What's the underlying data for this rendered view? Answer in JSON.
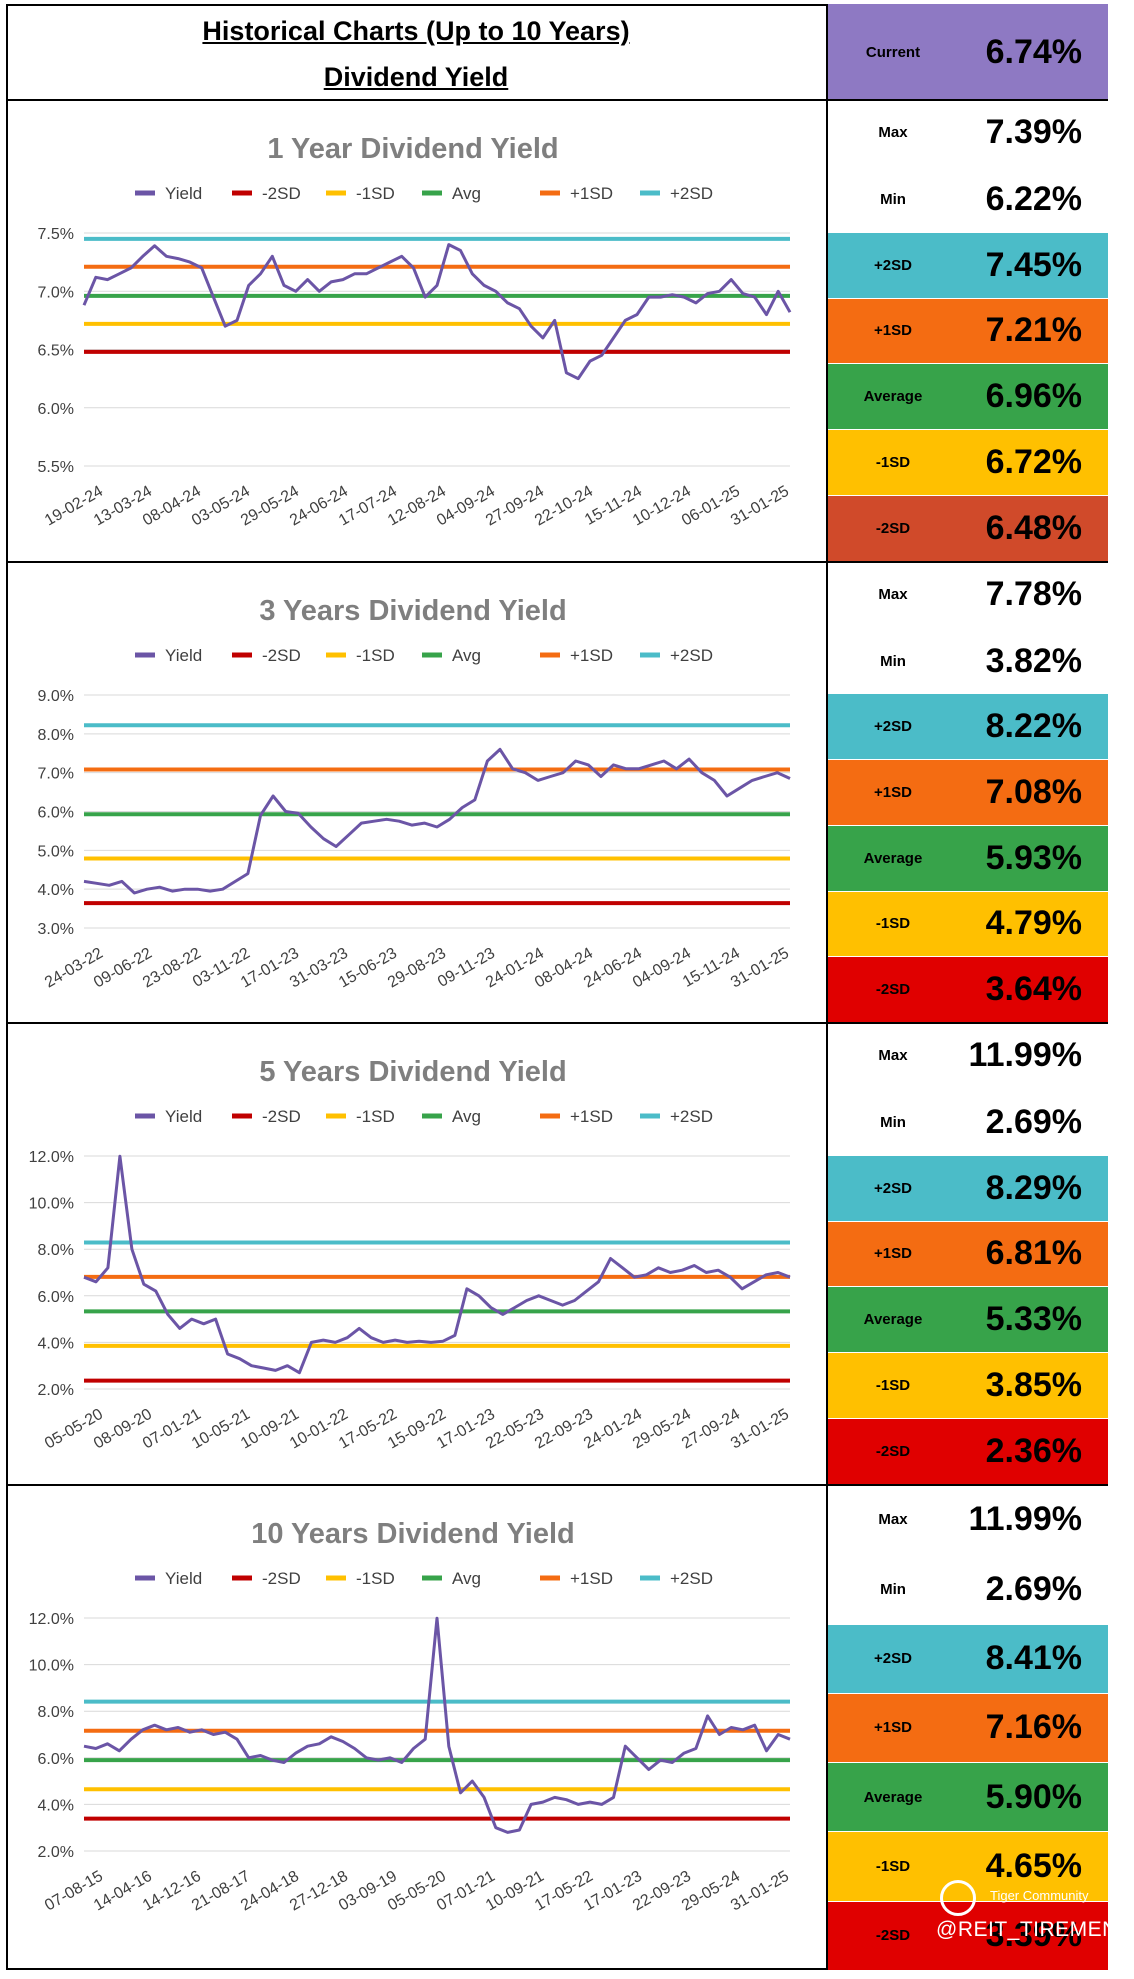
{
  "header": {
    "title_line1": "Historical Charts (Up to 10 Years)",
    "title_line2": "Dividend Yield"
  },
  "current": {
    "label": "Current",
    "value": "6.74%",
    "color": "#8E79C3"
  },
  "legend_labels": [
    "Yield",
    "-2SD",
    "-1SD",
    "Avg",
    "+1SD",
    "+2SD"
  ],
  "colors": {
    "yield": "#6B55A6",
    "minus2": "#C00000",
    "minus1": "#FFC000",
    "avg": "#37A34A",
    "plus1": "#F46C12",
    "plus2": "#4BBCC8",
    "grid": "#D9D9D9",
    "title": "#7F7F7F"
  },
  "panels": [
    {
      "stats": [
        {
          "label": "Max",
          "value": "7.39%",
          "bg": "#FFFFFF"
        },
        {
          "label": "Min",
          "value": "6.22%",
          "bg": "#FFFFFF"
        },
        {
          "label": "+2SD",
          "value": "7.45%",
          "bg": "#4BBCC8"
        },
        {
          "label": "+1SD",
          "value": "7.21%",
          "bg": "#F46C12"
        },
        {
          "label": "Average",
          "value": "6.96%",
          "bg": "#37A34A"
        },
        {
          "label": "-1SD",
          "value": "6.72%",
          "bg": "#FFC000"
        },
        {
          "label": "-2SD",
          "value": "6.48%",
          "bg": "#D04A2A"
        }
      ]
    },
    {
      "stats": [
        {
          "label": "Max",
          "value": "7.78%",
          "bg": "#FFFFFF"
        },
        {
          "label": "Min",
          "value": "3.82%",
          "bg": "#FFFFFF"
        },
        {
          "label": "+2SD",
          "value": "8.22%",
          "bg": "#4BBCC8"
        },
        {
          "label": "+1SD",
          "value": "7.08%",
          "bg": "#F46C12"
        },
        {
          "label": "Average",
          "value": "5.93%",
          "bg": "#37A34A"
        },
        {
          "label": "-1SD",
          "value": "4.79%",
          "bg": "#FFC000"
        },
        {
          "label": "-2SD",
          "value": "3.64%",
          "bg": "#E00000"
        }
      ]
    },
    {
      "stats": [
        {
          "label": "Max",
          "value": "11.99%",
          "bg": "#FFFFFF"
        },
        {
          "label": "Min",
          "value": "2.69%",
          "bg": "#FFFFFF"
        },
        {
          "label": "+2SD",
          "value": "8.29%",
          "bg": "#4BBCC8"
        },
        {
          "label": "+1SD",
          "value": "6.81%",
          "bg": "#F46C12"
        },
        {
          "label": "Average",
          "value": "5.33%",
          "bg": "#37A34A"
        },
        {
          "label": "-1SD",
          "value": "3.85%",
          "bg": "#FFC000"
        },
        {
          "label": "-2SD",
          "value": "2.36%",
          "bg": "#E00000"
        }
      ]
    },
    {
      "stats": [
        {
          "label": "Max",
          "value": "11.99%",
          "bg": "#FFFFFF"
        },
        {
          "label": "Min",
          "value": "2.69%",
          "bg": "#FFFFFF"
        },
        {
          "label": "+2SD",
          "value": "8.41%",
          "bg": "#4BBCC8"
        },
        {
          "label": "+1SD",
          "value": "7.16%",
          "bg": "#F46C12"
        },
        {
          "label": "Average",
          "value": "5.90%",
          "bg": "#37A34A"
        },
        {
          "label": "-1SD",
          "value": "4.65%",
          "bg": "#FFC000"
        },
        {
          "label": "-2SD",
          "value": "3.39%",
          "bg": "#E00000"
        }
      ]
    }
  ],
  "chart_data": [
    {
      "type": "line",
      "title": "1 Year Dividend Yield",
      "ylim": [
        5.5,
        7.5
      ],
      "yticks": [
        5.5,
        6.0,
        6.5,
        7.0,
        7.5
      ],
      "ytick_labels": [
        "5.5%",
        "6.0%",
        "6.5%",
        "7.0%",
        "7.5%"
      ],
      "x_tick_labels": [
        "19-02-24",
        "13-03-24",
        "08-04-24",
        "03-05-24",
        "29-05-24",
        "24-06-24",
        "17-07-24",
        "12-08-24",
        "04-09-24",
        "27-09-24",
        "22-10-24",
        "15-11-24",
        "10-12-24",
        "06-01-25",
        "31-01-25"
      ],
      "bands": {
        "minus2": 6.48,
        "minus1": 6.72,
        "avg": 6.96,
        "plus1": 7.21,
        "plus2": 7.45
      },
      "series": [
        {
          "name": "Yield",
          "values": [
            6.88,
            7.12,
            7.1,
            7.15,
            7.2,
            7.3,
            7.39,
            7.3,
            7.28,
            7.25,
            7.2,
            6.95,
            6.7,
            6.75,
            7.05,
            7.15,
            7.3,
            7.05,
            7.0,
            7.1,
            7.0,
            7.08,
            7.1,
            7.15,
            7.15,
            7.2,
            7.25,
            7.3,
            7.2,
            6.95,
            7.05,
            7.4,
            7.35,
            7.15,
            7.05,
            7.0,
            6.9,
            6.85,
            6.7,
            6.6,
            6.75,
            6.3,
            6.25,
            6.4,
            6.45,
            6.6,
            6.75,
            6.8,
            6.95,
            6.95,
            6.97,
            6.95,
            6.9,
            6.98,
            7.0,
            7.1,
            6.98,
            6.95,
            6.8,
            7.0,
            6.82
          ]
        }
      ]
    },
    {
      "type": "line",
      "title": "3 Years Dividend Yield",
      "ylim": [
        3.0,
        9.0
      ],
      "yticks": [
        3.0,
        4.0,
        5.0,
        6.0,
        7.0,
        8.0,
        9.0
      ],
      "ytick_labels": [
        "3.0%",
        "4.0%",
        "5.0%",
        "6.0%",
        "7.0%",
        "8.0%",
        "9.0%"
      ],
      "x_tick_labels": [
        "24-03-22",
        "09-06-22",
        "23-08-22",
        "03-11-22",
        "17-01-23",
        "31-03-23",
        "15-06-23",
        "29-08-23",
        "09-11-23",
        "24-01-24",
        "08-04-24",
        "24-06-24",
        "04-09-24",
        "15-11-24",
        "31-01-25"
      ],
      "bands": {
        "minus2": 3.64,
        "minus1": 4.79,
        "avg": 5.93,
        "plus1": 7.08,
        "plus2": 8.22
      },
      "series": [
        {
          "name": "Yield",
          "values": [
            4.2,
            4.15,
            4.1,
            4.2,
            3.9,
            4.0,
            4.05,
            3.95,
            4.0,
            4.0,
            3.95,
            4.0,
            4.2,
            4.4,
            5.9,
            6.4,
            6.0,
            5.95,
            5.6,
            5.3,
            5.1,
            5.4,
            5.7,
            5.75,
            5.8,
            5.75,
            5.65,
            5.7,
            5.6,
            5.8,
            6.1,
            6.3,
            7.3,
            7.6,
            7.1,
            7.0,
            6.8,
            6.9,
            7.0,
            7.3,
            7.2,
            6.9,
            7.2,
            7.1,
            7.1,
            7.2,
            7.3,
            7.1,
            7.35,
            7.0,
            6.8,
            6.4,
            6.6,
            6.8,
            6.9,
            7.0,
            6.85
          ]
        }
      ]
    },
    {
      "type": "line",
      "title": "5 Years Dividend Yield",
      "ylim": [
        2.0,
        12.0
      ],
      "yticks": [
        2.0,
        4.0,
        6.0,
        8.0,
        10.0,
        12.0
      ],
      "ytick_labels": [
        "2.0%",
        "4.0%",
        "6.0%",
        "8.0%",
        "10.0%",
        "12.0%"
      ],
      "x_tick_labels": [
        "05-05-20",
        "08-09-20",
        "07-01-21",
        "10-05-21",
        "10-09-21",
        "10-01-22",
        "17-05-22",
        "15-09-22",
        "17-01-23",
        "22-05-23",
        "22-09-23",
        "24-01-24",
        "29-05-24",
        "27-09-24",
        "31-01-25"
      ],
      "bands": {
        "minus2": 2.36,
        "minus1": 3.85,
        "avg": 5.33,
        "plus1": 6.81,
        "plus2": 8.29
      },
      "series": [
        {
          "name": "Yield",
          "values": [
            6.8,
            6.6,
            7.2,
            11.99,
            8.0,
            6.5,
            6.2,
            5.2,
            4.6,
            5.0,
            4.8,
            5.0,
            3.5,
            3.3,
            3.0,
            2.9,
            2.8,
            3.0,
            2.7,
            4.0,
            4.1,
            4.0,
            4.2,
            4.6,
            4.2,
            4.0,
            4.1,
            4.0,
            4.05,
            4.0,
            4.05,
            4.3,
            6.3,
            6.0,
            5.5,
            5.2,
            5.5,
            5.8,
            6.0,
            5.8,
            5.6,
            5.8,
            6.2,
            6.6,
            7.6,
            7.2,
            6.8,
            6.9,
            7.2,
            7.0,
            7.1,
            7.3,
            7.0,
            7.1,
            6.8,
            6.3,
            6.6,
            6.9,
            7.0,
            6.8
          ]
        }
      ]
    },
    {
      "type": "line",
      "title": "10 Years Dividend Yield",
      "ylim": [
        2.0,
        12.0
      ],
      "yticks": [
        2.0,
        4.0,
        6.0,
        8.0,
        10.0,
        12.0
      ],
      "ytick_labels": [
        "2.0%",
        "4.0%",
        "6.0%",
        "8.0%",
        "10.0%",
        "12.0%"
      ],
      "x_tick_labels": [
        "07-08-15",
        "14-04-16",
        "14-12-16",
        "21-08-17",
        "24-04-18",
        "27-12-18",
        "03-09-19",
        "05-05-20",
        "07-01-21",
        "10-09-21",
        "17-05-22",
        "17-01-23",
        "22-09-23",
        "29-05-24",
        "31-01-25"
      ],
      "bands": {
        "minus2": 3.39,
        "minus1": 4.65,
        "avg": 5.9,
        "plus1": 7.16,
        "plus2": 8.41
      },
      "series": [
        {
          "name": "Yield",
          "values": [
            6.5,
            6.4,
            6.6,
            6.3,
            6.8,
            7.2,
            7.4,
            7.2,
            7.3,
            7.1,
            7.2,
            7.0,
            7.1,
            6.8,
            6.0,
            6.1,
            5.9,
            5.8,
            6.2,
            6.5,
            6.6,
            6.9,
            6.7,
            6.4,
            6.0,
            5.9,
            6.0,
            5.8,
            6.4,
            6.8,
            11.99,
            6.5,
            4.5,
            5.0,
            4.3,
            3.0,
            2.8,
            2.9,
            4.0,
            4.1,
            4.3,
            4.2,
            4.0,
            4.1,
            4.0,
            4.3,
            6.5,
            6.0,
            5.5,
            5.9,
            5.8,
            6.2,
            6.4,
            7.8,
            7.0,
            7.3,
            7.2,
            7.4,
            6.3,
            7.0,
            6.8
          ]
        }
      ]
    }
  ],
  "watermark": {
    "brand": "Tiger Community",
    "handle": "@REIT_TIREMENT"
  }
}
